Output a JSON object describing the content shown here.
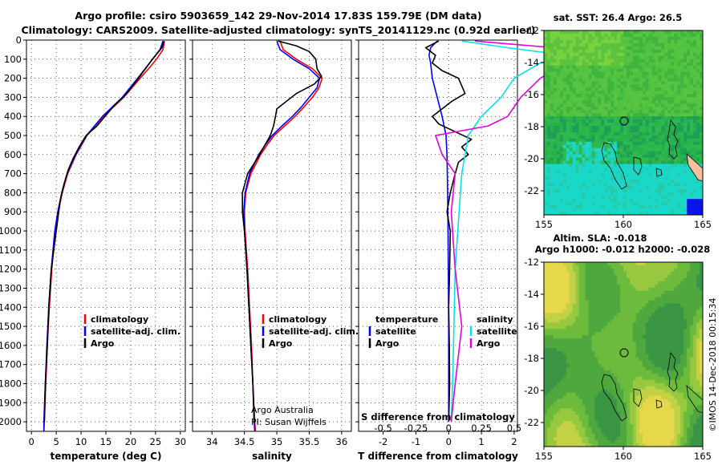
{
  "header": {
    "line1": "Argo profile: csiro 5903659_142 29-Nov-2014 17.83S 159.79E (DM data)",
    "line2": "Climatology: CARS2009. Satellite-adjusted climatology: synTS_20141129.nc (0.92d earlier)"
  },
  "colors": {
    "climatology": "#ff0000",
    "satellite": "#0000ff",
    "argo": "#000000",
    "sat_salinity": "#00e5e5",
    "argo_salinity": "#e000e0"
  },
  "chart_data": [
    {
      "type": "line",
      "id": "temperature",
      "xlabel": "temperature (deg C)",
      "xlim": [
        -1,
        31
      ],
      "xticks": [
        0,
        5,
        10,
        15,
        20,
        25,
        30
      ],
      "ylim": [
        2050,
        0
      ],
      "yticks": [
        0,
        100,
        200,
        300,
        400,
        500,
        600,
        700,
        800,
        900,
        1000,
        1100,
        1200,
        1300,
        1400,
        1500,
        1600,
        1700,
        1800,
        1900,
        2000
      ],
      "legend": [
        "climatology",
        "satellite-adj. clim.",
        "Argo"
      ],
      "series": [
        {
          "name": "climatology",
          "color": "climatology",
          "depth": [
            5,
            50,
            100,
            150,
            200,
            300,
            400,
            500,
            600,
            700,
            800,
            900,
            1000,
            1200,
            1400,
            1600,
            1800,
            2000,
            2050
          ],
          "values": [
            26.8,
            26.5,
            25.2,
            23.6,
            21.9,
            18.6,
            14.5,
            11.2,
            9.0,
            7.3,
            6.2,
            5.4,
            4.8,
            4.1,
            3.6,
            3.2,
            2.9,
            2.6,
            2.5
          ]
        },
        {
          "name": "satellite-adj. clim.",
          "color": "satellite",
          "depth": [
            5,
            50,
            100,
            150,
            200,
            300,
            400,
            500,
            600,
            700,
            800,
            900,
            1000,
            1200,
            1400,
            1600,
            1800,
            2000,
            2050
          ],
          "values": [
            26.5,
            25.9,
            24.4,
            22.9,
            21.4,
            18.3,
            14.3,
            11.1,
            8.9,
            7.2,
            6.1,
            5.3,
            4.7,
            4.0,
            3.5,
            3.1,
            2.8,
            2.5,
            2.5
          ]
        },
        {
          "name": "Argo",
          "color": "argo",
          "depth": [
            5,
            40,
            80,
            120,
            170,
            220,
            280,
            340,
            400,
            450,
            500,
            560,
            620,
            680,
            760,
            840,
            940,
            1040,
            1200,
            1400,
            1600,
            1800,
            2000
          ],
          "values": [
            26.7,
            26.3,
            25.0,
            23.8,
            22.4,
            21.0,
            19.2,
            16.8,
            14.8,
            13.2,
            11.0,
            9.6,
            8.4,
            7.4,
            6.5,
            5.8,
            5.3,
            4.8,
            4.0,
            3.5,
            3.2,
            2.8,
            2.6
          ]
        }
      ]
    },
    {
      "type": "line",
      "id": "salinity",
      "xlabel": "salinity",
      "xlim": [
        33.7,
        36.15
      ],
      "xticks": [
        34,
        34.5,
        35,
        35.5,
        36
      ],
      "ylim": [
        2050,
        0
      ],
      "legend": [
        "climatology",
        "satellite-adj. clim.",
        "Argo"
      ],
      "series": [
        {
          "name": "climatology",
          "color": "climatology",
          "depth": [
            5,
            50,
            100,
            150,
            200,
            250,
            300,
            350,
            400,
            450,
            500,
            550,
            600,
            700,
            800,
            900,
            1000,
            1200,
            1400,
            1600,
            1800,
            2000,
            2050
          ],
          "values": [
            35.05,
            35.1,
            35.3,
            35.55,
            35.7,
            35.65,
            35.55,
            35.42,
            35.28,
            35.12,
            34.96,
            34.85,
            34.75,
            34.6,
            34.52,
            34.5,
            34.51,
            34.55,
            34.58,
            34.61,
            34.63,
            34.66,
            34.67
          ]
        },
        {
          "name": "satellite-adj. clim.",
          "color": "satellite",
          "depth": [
            5,
            50,
            100,
            150,
            200,
            250,
            300,
            350,
            400,
            450,
            500,
            550,
            600,
            700,
            800,
            900,
            1000,
            1200,
            1400,
            1600,
            1800,
            2000,
            2050
          ],
          "values": [
            35.0,
            35.05,
            35.25,
            35.5,
            35.66,
            35.62,
            35.5,
            35.38,
            35.24,
            35.08,
            34.93,
            34.82,
            34.72,
            34.58,
            34.51,
            34.49,
            34.5,
            34.54,
            34.57,
            34.6,
            34.63,
            34.65,
            34.66
          ]
        },
        {
          "name": "Argo",
          "color": "argo",
          "depth": [
            5,
            30,
            60,
            100,
            150,
            190,
            230,
            280,
            320,
            360,
            400,
            450,
            500,
            560,
            620,
            700,
            800,
            900,
            1000,
            1200,
            1400,
            1600,
            1800,
            2000
          ],
          "values": [
            35.02,
            35.3,
            35.5,
            35.6,
            35.62,
            35.69,
            35.58,
            35.3,
            35.15,
            35.0,
            34.98,
            34.95,
            34.9,
            34.8,
            34.7,
            34.55,
            34.47,
            34.47,
            34.5,
            34.54,
            34.57,
            34.6,
            34.63,
            34.65
          ]
        }
      ],
      "notes": [
        "Argo Australia",
        "PI: Susan Wijffels"
      ]
    },
    {
      "type": "line",
      "id": "differences",
      "xlabel": "T difference from climatology",
      "x2label": "S difference from climatology",
      "xlim": [
        -2.75,
        2.1
      ],
      "xticks": [
        -2,
        -1,
        0,
        1,
        2
      ],
      "x2ticks": [
        -0.5,
        -0.25,
        0,
        0.25,
        0.5
      ],
      "legend_temperature": [
        "temperature",
        "satellite",
        "Argo"
      ],
      "legend_salinity": [
        "salinity",
        "satellite",
        "Argo"
      ],
      "series": [
        {
          "name": "T satellite",
          "color": "satellite",
          "depth": [
            5,
            40,
            80,
            120,
            200,
            300,
            400,
            500,
            600,
            800,
            1000,
            1500,
            2000
          ],
          "values": [
            -0.35,
            -0.55,
            -0.6,
            -0.55,
            -0.5,
            -0.35,
            -0.2,
            -0.08,
            -0.05,
            -0.03,
            -0.02,
            0,
            0
          ]
        },
        {
          "name": "T Argo",
          "color": "argo",
          "depth": [
            5,
            40,
            80,
            120,
            160,
            200,
            240,
            280,
            320,
            360,
            400,
            440,
            480,
            520,
            560,
            600,
            640,
            700,
            800,
            900,
            1000,
            1200,
            1400,
            1600,
            1800,
            2000
          ],
          "values": [
            -0.3,
            -0.7,
            -0.4,
            -0.5,
            -0.2,
            0.3,
            0.4,
            0.5,
            0.1,
            -0.2,
            -0.5,
            -0.3,
            0.2,
            0.7,
            0.4,
            0.6,
            0.3,
            0.2,
            0.05,
            -0.05,
            0.05,
            0.03,
            0,
            0.02,
            0.03,
            0
          ]
        },
        {
          "name": "S satellite",
          "color": "sat_salinity",
          "depth": [
            5,
            40,
            80,
            120,
            200,
            300,
            400,
            500,
            700,
            900,
            1200,
            1500,
            1800,
            2000
          ],
          "values": [
            0.1,
            0.45,
            0.9,
            0.7,
            0.5,
            0.4,
            0.25,
            0.15,
            0.1,
            0.08,
            0.05,
            0.04,
            0.03,
            0.02
          ]
        },
        {
          "name": "S Argo",
          "color": "argo_salinity",
          "depth": [
            5,
            40,
            80,
            120,
            200,
            300,
            400,
            450,
            500,
            600,
            700,
            900,
            1200,
            1500,
            1800,
            2000
          ],
          "values": [
            0.2,
            0.8,
            1.2,
            0.9,
            0.7,
            0.55,
            0.45,
            0.3,
            -0.1,
            -0.05,
            0.05,
            0.02,
            0.05,
            0.1,
            0.05,
            0.02
          ]
        }
      ]
    },
    {
      "type": "heatmap",
      "id": "sst_map",
      "title": "sat. SST: 26.4 Argo: 26.5",
      "xlim": [
        155,
        165
      ],
      "ylim": [
        -23.5,
        -12
      ],
      "xticks": [
        155,
        160,
        165
      ],
      "yticks": [
        -12,
        -14,
        -16,
        -18,
        -20,
        -22
      ],
      "profile_location": {
        "lon": 159.79,
        "lat": -17.83
      }
    },
    {
      "type": "heatmap",
      "id": "sla_map",
      "title": "Altim. SLA: -0.018",
      "subtitle": "Argo h1000: -0.012 h2000: -0.028",
      "xlim": [
        155,
        165
      ],
      "ylim": [
        -23.5,
        -12
      ],
      "xticks": [
        155,
        160,
        165
      ],
      "yticks": [
        -12,
        -14,
        -16,
        -18,
        -20,
        -22
      ],
      "profile_location": {
        "lon": 159.79,
        "lat": -17.83
      }
    }
  ],
  "footer": {
    "credit": "©IMOS 14-Dec-2018 00:15:34"
  }
}
